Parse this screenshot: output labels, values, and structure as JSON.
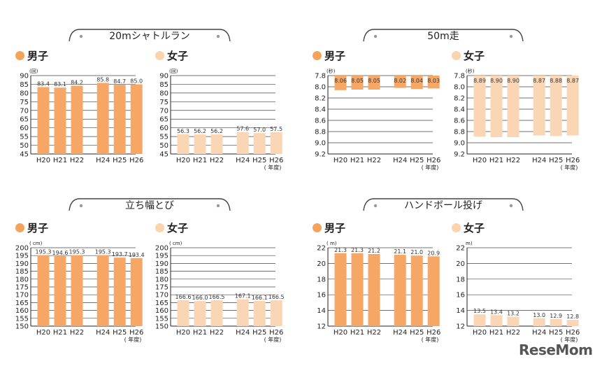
{
  "events": [
    {
      "title": "20mシャトルラン"
    },
    {
      "title": "50m走"
    },
    {
      "title": "立ち幅とび"
    },
    {
      "title": "ハンドボール投げ"
    }
  ],
  "gender": {
    "male": "男子",
    "female": "女子"
  },
  "colors": {
    "male_dot": "#f5a35c",
    "female_dot": "#fbd3ac",
    "male_bar": "#f6a766",
    "female_bar": "#fbd6b4"
  },
  "logo": "ReseMom",
  "chart_data": [
    {
      "type": "bar",
      "event": "20mシャトルラン",
      "gender": "男子",
      "unit": "(回)",
      "categories": [
        "H20",
        "H21",
        "H22",
        "H24",
        "H25",
        "H26"
      ],
      "values": [
        83.4,
        83.1,
        84.2,
        85.8,
        84.7,
        85.0
      ],
      "value_labels": [
        "83.4",
        "83.1",
        "84.2",
        "85.8",
        "84.7",
        "85.0"
      ],
      "ylim": [
        45,
        90
      ],
      "yticks": [
        45,
        50,
        55,
        60,
        65,
        70,
        75,
        80,
        85,
        90
      ],
      "year_label": ""
    },
    {
      "type": "bar",
      "event": "20mシャトルラン",
      "gender": "女子",
      "unit": "(回)",
      "categories": [
        "H20",
        "H21",
        "H22",
        "H24",
        "H25",
        "H26"
      ],
      "values": [
        56.3,
        56.2,
        56.2,
        57.6,
        57.0,
        57.5
      ],
      "value_labels": [
        "56.3",
        "56.2",
        "56.2",
        "57.6",
        "57.0",
        "57.5"
      ],
      "ylim": [
        45,
        90
      ],
      "yticks": [
        45,
        50,
        55,
        60,
        65,
        70,
        75,
        80,
        85,
        90
      ],
      "year_label": "( 年度)"
    },
    {
      "type": "bar",
      "event": "50m走",
      "gender": "男子",
      "unit": "(秒)",
      "inverted": true,
      "categories": [
        "H20",
        "H21",
        "H22",
        "H24",
        "H25",
        "H26"
      ],
      "values": [
        8.06,
        8.05,
        8.05,
        8.02,
        8.04,
        8.03
      ],
      "value_labels": [
        "8.06",
        "8.05",
        "8.05",
        "8.02",
        "8.04",
        "8.03"
      ],
      "ylim": [
        7.8,
        9.2
      ],
      "yticks": [
        7.8,
        8.0,
        8.2,
        8.4,
        8.6,
        8.8,
        9.0,
        9.2
      ],
      "year_label": "( 年度)"
    },
    {
      "type": "bar",
      "event": "50m走",
      "gender": "女子",
      "unit": "(秒)",
      "inverted": true,
      "categories": [
        "H20",
        "H21",
        "H22",
        "H24",
        "H25",
        "H26"
      ],
      "values": [
        8.89,
        8.9,
        8.9,
        8.87,
        8.88,
        8.87
      ],
      "value_labels": [
        "8.89",
        "8.90",
        "8.90",
        "8.87",
        "8.88",
        "8.87"
      ],
      "ylim": [
        7.8,
        9.2
      ],
      "yticks": [
        7.8,
        8.0,
        8.2,
        8.4,
        8.6,
        8.8,
        9.0,
        9.2
      ],
      "year_label": "( 年度)"
    },
    {
      "type": "bar",
      "event": "立ち幅とび",
      "gender": "男子",
      "unit": "( cm)",
      "categories": [
        "H20",
        "H21",
        "H22",
        "H24",
        "H25",
        "H26"
      ],
      "values": [
        195.3,
        194.6,
        195.3,
        195.3,
        193.7,
        193.4
      ],
      "value_labels": [
        "195.3",
        "194.6",
        "195.3",
        "195.3",
        "193.7",
        "193.4"
      ],
      "ylim": [
        150,
        200
      ],
      "yticks": [
        150,
        155,
        160,
        165,
        170,
        175,
        180,
        185,
        190,
        195,
        200
      ],
      "year_label": "( 年度)"
    },
    {
      "type": "bar",
      "event": "立ち幅とび",
      "gender": "女子",
      "unit": "( cm)",
      "categories": [
        "H20",
        "H21",
        "H22",
        "H24",
        "H25",
        "H26"
      ],
      "values": [
        166.6,
        166.0,
        166.5,
        167.1,
        166.1,
        166.5
      ],
      "value_labels": [
        "166.6",
        "166.0",
        "166.5",
        "167.1",
        "166.1",
        "166.5"
      ],
      "ylim": [
        150,
        200
      ],
      "yticks": [
        150,
        155,
        160,
        165,
        170,
        175,
        180,
        185,
        190,
        195,
        200
      ],
      "year_label": "( 年度)"
    },
    {
      "type": "bar",
      "event": "ハンドボール投げ",
      "gender": "男子",
      "unit": "( m)",
      "categories": [
        "H20",
        "H21",
        "H22",
        "H24",
        "H25",
        "H26"
      ],
      "values": [
        21.3,
        21.3,
        21.2,
        21.1,
        21.0,
        20.9
      ],
      "value_labels": [
        "21.3",
        "21.3",
        "21.2",
        "21.1",
        "21.0",
        "20.9"
      ],
      "ylim": [
        12,
        22
      ],
      "yticks": [
        12,
        14,
        16,
        18,
        20,
        22
      ],
      "year_label": "( 年度)"
    },
    {
      "type": "bar",
      "event": "ハンドボール投げ",
      "gender": "女子",
      "unit": "m)",
      "categories": [
        "H20",
        "H21",
        "H22",
        "H24",
        "H25",
        "H26"
      ],
      "values": [
        13.5,
        13.4,
        13.2,
        13.0,
        12.9,
        12.8
      ],
      "value_labels": [
        "13.5",
        "13.4",
        "13.2",
        "13.0",
        "12.9",
        "12.8"
      ],
      "ylim": [
        12,
        22
      ],
      "yticks": [
        12,
        14,
        16,
        18,
        20,
        22
      ],
      "year_label": "( 年度)"
    }
  ]
}
